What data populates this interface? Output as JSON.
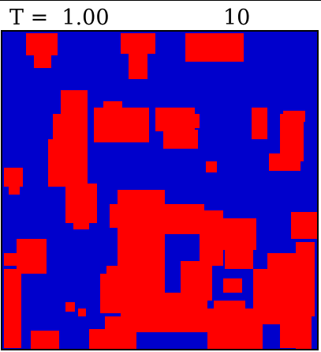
{
  "header": {
    "temperature_label": "T =",
    "temperature_value": "1.00",
    "step_value": "10"
  },
  "colors": {
    "spin_up": "#ff0000",
    "spin_down": "#0000cc",
    "frame": "#000000"
  }
}
